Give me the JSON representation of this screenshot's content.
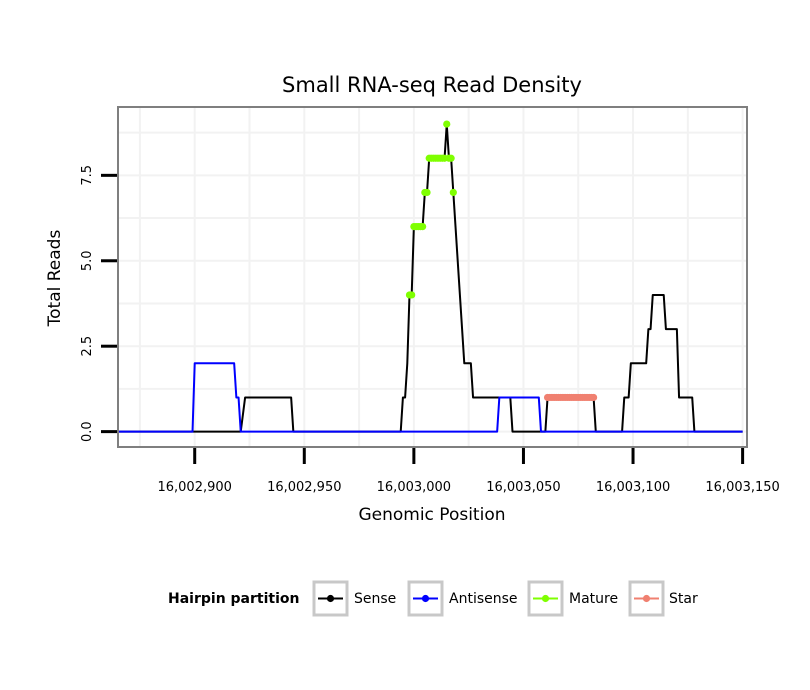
{
  "chart_data": {
    "type": "line",
    "title": "Small RNA-seq Read Density",
    "xlabel": "Genomic Position",
    "ylabel": "Total Reads",
    "xlim": [
      16002865,
      16003152
    ],
    "ylim": [
      -0.45,
      9.5
    ],
    "x_ticks": [
      16002900,
      16002950,
      16003000,
      16003050,
      16003100,
      16003150
    ],
    "x_tick_labels": [
      "16,002,900",
      "16,002,950",
      "16,003,000",
      "16,003,050",
      "16,003,100",
      "16,003,150"
    ],
    "y_ticks": [
      0,
      2.5,
      5,
      7.5
    ],
    "y_tick_labels": [
      "0.0",
      "2.5",
      "5.0",
      "7.5"
    ],
    "grid": true,
    "legend": {
      "title": "Hairpin partition",
      "position": "bottom",
      "entries": [
        "Sense",
        "Antisense",
        "Mature",
        "Star"
      ]
    },
    "series": [
      {
        "name": "Sense",
        "color": "#000000",
        "style": "line",
        "points": [
          [
            16002865,
            0
          ],
          [
            16002921,
            0
          ],
          [
            16002923,
            1
          ],
          [
            16002944,
            1
          ],
          [
            16002945,
            0
          ],
          [
            16002994,
            0
          ],
          [
            16002995,
            1
          ],
          [
            16002996,
            1
          ],
          [
            16002997,
            2
          ],
          [
            16002998,
            4
          ],
          [
            16002999,
            4
          ],
          [
            16003000,
            6
          ],
          [
            16003004,
            6
          ],
          [
            16003005,
            7
          ],
          [
            16003006,
            7
          ],
          [
            16003007,
            8
          ],
          [
            16003014,
            8
          ],
          [
            16003015,
            9
          ],
          [
            16003016,
            8
          ],
          [
            16003017,
            8
          ],
          [
            16003018,
            7
          ],
          [
            16003019,
            6
          ],
          [
            16003020,
            5
          ],
          [
            16003021,
            4
          ],
          [
            16003022,
            3
          ],
          [
            16003023,
            2
          ],
          [
            16003026,
            2
          ],
          [
            16003027,
            1
          ],
          [
            16003044,
            1
          ],
          [
            16003045,
            0
          ],
          [
            16003060,
            0
          ],
          [
            16003061,
            1
          ],
          [
            16003082,
            1
          ],
          [
            16003083,
            0
          ],
          [
            16003095,
            0
          ],
          [
            16003096,
            1
          ],
          [
            16003098,
            1
          ],
          [
            16003099,
            2
          ],
          [
            16003106,
            2
          ],
          [
            16003107,
            3
          ],
          [
            16003108,
            3
          ],
          [
            16003109,
            4
          ],
          [
            16003114,
            4
          ],
          [
            16003115,
            3
          ],
          [
            16003120,
            3
          ],
          [
            16003121,
            1
          ],
          [
            16003127,
            1
          ],
          [
            16003128,
            0
          ],
          [
            16003150,
            0
          ]
        ]
      },
      {
        "name": "Antisense",
        "color": "#0000ff",
        "style": "line",
        "points": [
          [
            16002865,
            0
          ],
          [
            16002899,
            0
          ],
          [
            16002900,
            2
          ],
          [
            16002918,
            2
          ],
          [
            16002919,
            1
          ],
          [
            16002920,
            1
          ],
          [
            16002921,
            0
          ],
          [
            16003038,
            0
          ],
          [
            16003039,
            1
          ],
          [
            16003057,
            1
          ],
          [
            16003058,
            0
          ],
          [
            16003150,
            0
          ]
        ]
      },
      {
        "name": "Mature",
        "color": "#7fff00",
        "style": "points",
        "points": [
          [
            16002998,
            4
          ],
          [
            16002999,
            4
          ],
          [
            16003000,
            6
          ],
          [
            16003001,
            6
          ],
          [
            16003002,
            6
          ],
          [
            16003003,
            6
          ],
          [
            16003004,
            6
          ],
          [
            16003005,
            7
          ],
          [
            16003006,
            7
          ],
          [
            16003007,
            8
          ],
          [
            16003008,
            8
          ],
          [
            16003009,
            8
          ],
          [
            16003010,
            8
          ],
          [
            16003011,
            8
          ],
          [
            16003012,
            8
          ],
          [
            16003013,
            8
          ],
          [
            16003014,
            8
          ],
          [
            16003015,
            9
          ],
          [
            16003016,
            8
          ],
          [
            16003017,
            8
          ],
          [
            16003018,
            7
          ]
        ]
      },
      {
        "name": "Star",
        "color": "#f08070",
        "style": "points",
        "points": [
          [
            16003061,
            1
          ],
          [
            16003062,
            1
          ],
          [
            16003063,
            1
          ],
          [
            16003064,
            1
          ],
          [
            16003065,
            1
          ],
          [
            16003066,
            1
          ],
          [
            16003067,
            1
          ],
          [
            16003068,
            1
          ],
          [
            16003069,
            1
          ],
          [
            16003070,
            1
          ],
          [
            16003071,
            1
          ],
          [
            16003072,
            1
          ],
          [
            16003073,
            1
          ],
          [
            16003074,
            1
          ],
          [
            16003075,
            1
          ],
          [
            16003076,
            1
          ],
          [
            16003077,
            1
          ],
          [
            16003078,
            1
          ],
          [
            16003079,
            1
          ],
          [
            16003080,
            1
          ],
          [
            16003081,
            1
          ],
          [
            16003082,
            1
          ]
        ]
      }
    ]
  }
}
